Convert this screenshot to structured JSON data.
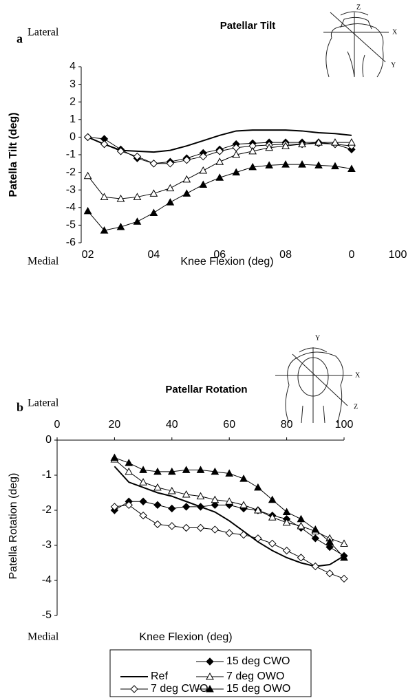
{
  "chart_data": [
    {
      "type": "line",
      "title": "Patellar Tilt",
      "panel_label": "a",
      "top_note": "Lateral",
      "bottom_note": "Medial",
      "x_label": "Knee Flexion (deg)",
      "y_label": "Patella Tilt (deg)",
      "x_end_label": "100",
      "diagram_labels": [
        "Z",
        "X",
        "Y"
      ],
      "x": [
        20,
        25,
        30,
        35,
        40,
        45,
        50,
        55,
        60,
        65,
        70,
        75,
        80,
        85,
        90,
        95,
        100
      ],
      "xlim": [
        18,
        114
      ],
      "xticks": [
        {
          "value": 20,
          "label": "02"
        },
        {
          "value": 40,
          "label": "04"
        },
        {
          "value": 60,
          "label": "06"
        },
        {
          "value": 80,
          "label": "08"
        },
        {
          "value": 100,
          "label": "0"
        }
      ],
      "ylim": [
        -6,
        4
      ],
      "yticks": [
        -6,
        -5,
        -4,
        -3,
        -2,
        -1,
        0,
        1,
        2,
        3,
        4
      ],
      "series": [
        {
          "name": "Ref",
          "color": "#000000",
          "marker": "none",
          "values": [
            0,
            -0.4,
            -0.75,
            -0.8,
            -0.85,
            -0.75,
            -0.5,
            -0.2,
            0.1,
            0.35,
            0.4,
            0.4,
            0.4,
            0.35,
            0.25,
            0.2,
            0.1
          ]
        },
        {
          "name": "15 deg CWO",
          "color": "#000000",
          "marker": "diamond-filled",
          "values": [
            0,
            -0.1,
            -0.7,
            -1.2,
            -1.5,
            -1.4,
            -1.2,
            -0.9,
            -0.7,
            -0.4,
            -0.35,
            -0.3,
            -0.3,
            -0.3,
            -0.3,
            -0.4,
            -0.7
          ]
        },
        {
          "name": "7 deg CWO",
          "color": "#000000",
          "marker": "diamond-open",
          "values": [
            0,
            -0.4,
            -0.8,
            -1.1,
            -1.5,
            -1.5,
            -1.3,
            -1.1,
            -0.8,
            -0.6,
            -0.5,
            -0.45,
            -0.4,
            -0.4,
            -0.35,
            -0.4,
            -0.5
          ]
        },
        {
          "name": "7 deg OWO",
          "color": "#000000",
          "marker": "triangle-open",
          "values": [
            -2.2,
            -3.4,
            -3.5,
            -3.4,
            -3.2,
            -2.9,
            -2.4,
            -1.9,
            -1.4,
            -1.0,
            -0.8,
            -0.6,
            -0.5,
            -0.4,
            -0.3,
            -0.3,
            -0.3
          ]
        },
        {
          "name": "15 deg OWO",
          "color": "#000000",
          "marker": "triangle-filled",
          "values": [
            -4.2,
            -5.3,
            -5.1,
            -4.8,
            -4.3,
            -3.7,
            -3.2,
            -2.7,
            -2.3,
            -2.0,
            -1.7,
            -1.6,
            -1.55,
            -1.55,
            -1.6,
            -1.65,
            -1.8
          ]
        }
      ]
    },
    {
      "type": "line",
      "title": "Patellar Rotation",
      "panel_label": "b",
      "top_note": "Lateral",
      "bottom_note": "Medial",
      "x_label": "Knee Flexion (deg)",
      "y_label": "Patella Rotation (deg)",
      "diagram_labels": [
        "Y",
        "X",
        "Z"
      ],
      "x": [
        20,
        25,
        30,
        35,
        40,
        45,
        50,
        55,
        60,
        65,
        70,
        75,
        80,
        85,
        90,
        95,
        100
      ],
      "xlim": [
        0,
        100
      ],
      "xticks": [
        0,
        20,
        40,
        60,
        80,
        100
      ],
      "ylim": [
        -5,
        0
      ],
      "yticks": [
        -5,
        -4,
        -3,
        -2,
        -1,
        0
      ],
      "series": [
        {
          "color": "#000000",
          "marker": "none",
          "values": [
            -0.75,
            -1.2,
            -1.35,
            -1.5,
            -1.6,
            -1.75,
            -1.9,
            -2.05,
            -2.3,
            -2.6,
            -2.9,
            -3.15,
            -3.35,
            -3.5,
            -3.6,
            -3.55,
            -3.3
          ]
        },
        {
          "color": "#000000",
          "marker": "diamond-filled",
          "values": [
            -2.0,
            -1.75,
            -1.75,
            -1.85,
            -1.95,
            -1.9,
            -1.9,
            -1.85,
            -1.85,
            -1.95,
            -2.0,
            -2.15,
            -2.25,
            -2.5,
            -2.8,
            -3.05,
            -3.3
          ]
        },
        {
          "color": "#000000",
          "marker": "diamond-open",
          "values": [
            -1.9,
            -1.85,
            -2.15,
            -2.4,
            -2.45,
            -2.5,
            -2.5,
            -2.55,
            -2.65,
            -2.7,
            -2.8,
            -2.95,
            -3.15,
            -3.35,
            -3.6,
            -3.8,
            -3.95
          ]
        },
        {
          "color": "#000000",
          "marker": "triangle-open",
          "values": [
            -0.55,
            -0.9,
            -1.2,
            -1.35,
            -1.45,
            -1.55,
            -1.6,
            -1.7,
            -1.75,
            -1.85,
            -2.0,
            -2.2,
            -2.35,
            -2.45,
            -2.6,
            -2.8,
            -2.95
          ]
        },
        {
          "color": "#000000",
          "marker": "triangle-filled",
          "values": [
            -0.5,
            -0.65,
            -0.85,
            -0.9,
            -0.9,
            -0.85,
            -0.85,
            -0.9,
            -0.95,
            -1.1,
            -1.35,
            -1.7,
            -2.05,
            -2.25,
            -2.55,
            -2.9,
            -3.35
          ]
        }
      ]
    }
  ]
}
